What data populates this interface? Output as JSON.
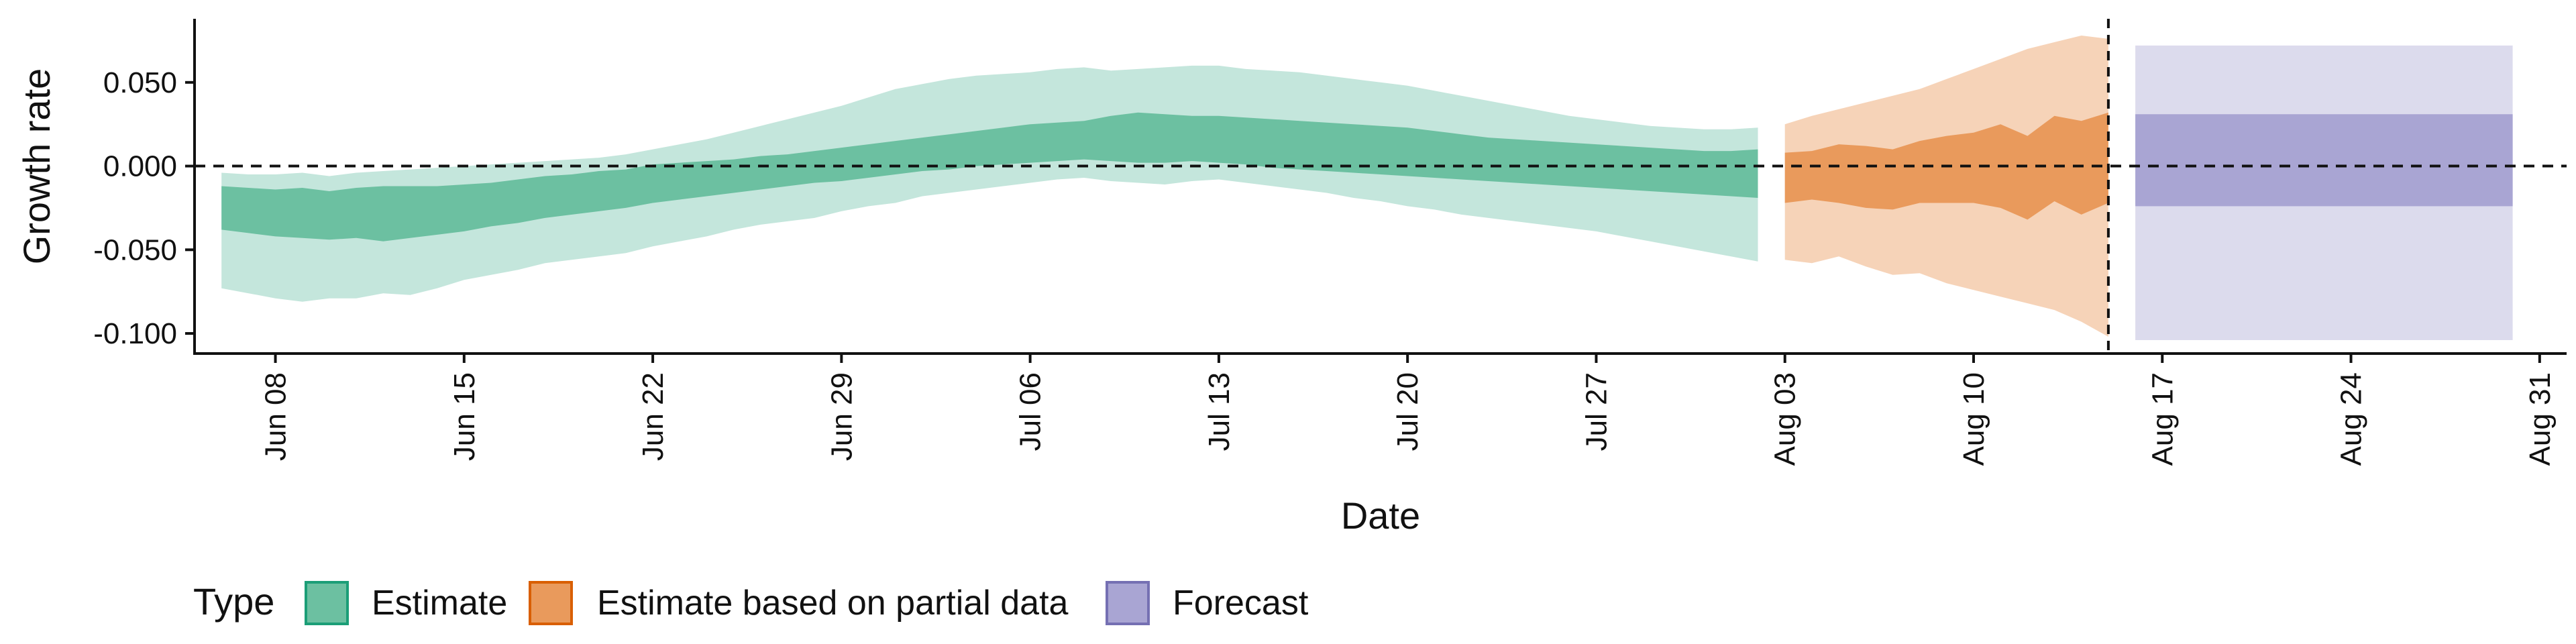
{
  "chart_data": {
    "type": "area",
    "xlabel": "Date",
    "ylabel": "Growth rate",
    "xlim": [
      "2020-06-05",
      "2020-09-01"
    ],
    "ylim": [
      -0.112,
      0.088
    ],
    "y_ticks": [
      {
        "value": 0.05,
        "label": "0.050"
      },
      {
        "value": 0.0,
        "label": "0.000"
      },
      {
        "value": -0.05,
        "label": "-0.050"
      },
      {
        "value": -0.1,
        "label": "-0.100"
      }
    ],
    "x_ticks": [
      {
        "date": "2020-06-08",
        "label": "Jun 08"
      },
      {
        "date": "2020-06-15",
        "label": "Jun 15"
      },
      {
        "date": "2020-06-22",
        "label": "Jun 22"
      },
      {
        "date": "2020-06-29",
        "label": "Jun 29"
      },
      {
        "date": "2020-07-06",
        "label": "Jul 06"
      },
      {
        "date": "2020-07-13",
        "label": "Jul 13"
      },
      {
        "date": "2020-07-20",
        "label": "Jul 20"
      },
      {
        "date": "2020-07-27",
        "label": "Jul 27"
      },
      {
        "date": "2020-08-03",
        "label": "Aug 03"
      },
      {
        "date": "2020-08-10",
        "label": "Aug 10"
      },
      {
        "date": "2020-08-17",
        "label": "Aug 17"
      },
      {
        "date": "2020-08-24",
        "label": "Aug 24"
      },
      {
        "date": "2020-08-31",
        "label": "Aug 31"
      }
    ],
    "hline": 0,
    "vline_date": "2020-08-15",
    "grid": false,
    "legend_position": "bottom-left",
    "legend_title": "Type",
    "legend": [
      {
        "label": "Estimate",
        "fill": "#6cc0a1",
        "stroke": "#1b9e77"
      },
      {
        "label": "Estimate based on partial data",
        "fill": "#e99a5c",
        "stroke": "#d95f02"
      },
      {
        "label": "Forecast",
        "fill": "#a9a5d3",
        "stroke": "#7570b3"
      }
    ],
    "series": [
      {
        "name": "Estimate",
        "inner_color": "#6cc0a1",
        "outer_color": "#c4e6dc",
        "x": [
          "2020-06-06",
          "2020-06-07",
          "2020-06-08",
          "2020-06-09",
          "2020-06-10",
          "2020-06-11",
          "2020-06-12",
          "2020-06-13",
          "2020-06-14",
          "2020-06-15",
          "2020-06-16",
          "2020-06-17",
          "2020-06-18",
          "2020-06-19",
          "2020-06-20",
          "2020-06-21",
          "2020-06-22",
          "2020-06-23",
          "2020-06-24",
          "2020-06-25",
          "2020-06-26",
          "2020-06-27",
          "2020-06-28",
          "2020-06-29",
          "2020-06-30",
          "2020-07-01",
          "2020-07-02",
          "2020-07-03",
          "2020-07-04",
          "2020-07-05",
          "2020-07-06",
          "2020-07-07",
          "2020-07-08",
          "2020-07-09",
          "2020-07-10",
          "2020-07-11",
          "2020-07-12",
          "2020-07-13",
          "2020-07-14",
          "2020-07-15",
          "2020-07-16",
          "2020-07-17",
          "2020-07-18",
          "2020-07-19",
          "2020-07-20",
          "2020-07-21",
          "2020-07-22",
          "2020-07-23",
          "2020-07-24",
          "2020-07-25",
          "2020-07-26",
          "2020-07-27",
          "2020-07-28",
          "2020-07-29",
          "2020-07-30",
          "2020-07-31",
          "2020-08-01",
          "2020-08-02"
        ],
        "outer_low": [
          -0.073,
          -0.076,
          -0.079,
          -0.081,
          -0.079,
          -0.079,
          -0.076,
          -0.077,
          -0.073,
          -0.068,
          -0.065,
          -0.062,
          -0.058,
          -0.056,
          -0.054,
          -0.052,
          -0.048,
          -0.045,
          -0.042,
          -0.038,
          -0.035,
          -0.033,
          -0.031,
          -0.027,
          -0.024,
          -0.022,
          -0.018,
          -0.016,
          -0.014,
          -0.012,
          -0.01,
          -0.008,
          -0.007,
          -0.009,
          -0.01,
          -0.011,
          -0.009,
          -0.008,
          -0.01,
          -0.012,
          -0.014,
          -0.016,
          -0.019,
          -0.021,
          -0.024,
          -0.026,
          -0.029,
          -0.031,
          -0.033,
          -0.035,
          -0.037,
          -0.039,
          -0.042,
          -0.045,
          -0.048,
          -0.051,
          -0.054,
          -0.057
        ],
        "inner_low": [
          -0.038,
          -0.04,
          -0.042,
          -0.043,
          -0.044,
          -0.043,
          -0.045,
          -0.043,
          -0.041,
          -0.039,
          -0.036,
          -0.034,
          -0.031,
          -0.029,
          -0.027,
          -0.025,
          -0.022,
          -0.02,
          -0.018,
          -0.016,
          -0.014,
          -0.012,
          -0.01,
          -0.009,
          -0.007,
          -0.005,
          -0.003,
          -0.002,
          0.0,
          0.001,
          0.002,
          0.003,
          0.004,
          0.003,
          0.002,
          0.002,
          0.003,
          0.002,
          0.001,
          -0.001,
          -0.002,
          -0.003,
          -0.004,
          -0.005,
          -0.006,
          -0.007,
          -0.008,
          -0.009,
          -0.01,
          -0.011,
          -0.012,
          -0.013,
          -0.014,
          -0.015,
          -0.016,
          -0.017,
          -0.018,
          -0.019
        ],
        "inner_high": [
          -0.012,
          -0.013,
          -0.014,
          -0.013,
          -0.015,
          -0.013,
          -0.012,
          -0.012,
          -0.012,
          -0.011,
          -0.01,
          -0.008,
          -0.006,
          -0.005,
          -0.003,
          -0.002,
          0.001,
          0.002,
          0.003,
          0.004,
          0.006,
          0.007,
          0.009,
          0.011,
          0.013,
          0.015,
          0.017,
          0.019,
          0.021,
          0.023,
          0.025,
          0.026,
          0.027,
          0.03,
          0.032,
          0.031,
          0.03,
          0.03,
          0.029,
          0.028,
          0.027,
          0.026,
          0.025,
          0.024,
          0.023,
          0.021,
          0.019,
          0.017,
          0.016,
          0.015,
          0.014,
          0.013,
          0.012,
          0.011,
          0.01,
          0.009,
          0.009,
          0.01
        ],
        "outer_high": [
          -0.004,
          -0.005,
          -0.005,
          -0.004,
          -0.006,
          -0.004,
          -0.003,
          -0.002,
          -0.001,
          0.0,
          0.001,
          0.002,
          0.003,
          0.004,
          0.005,
          0.007,
          0.01,
          0.013,
          0.016,
          0.02,
          0.024,
          0.028,
          0.032,
          0.036,
          0.041,
          0.046,
          0.049,
          0.052,
          0.054,
          0.055,
          0.056,
          0.058,
          0.059,
          0.057,
          0.058,
          0.059,
          0.06,
          0.06,
          0.058,
          0.057,
          0.056,
          0.054,
          0.052,
          0.05,
          0.048,
          0.045,
          0.042,
          0.039,
          0.036,
          0.033,
          0.03,
          0.028,
          0.026,
          0.024,
          0.023,
          0.022,
          0.022,
          0.023
        ]
      },
      {
        "name": "Estimate based on partial data",
        "inner_color": "#e99a5c",
        "outer_color": "#f6d3b8",
        "x": [
          "2020-08-03",
          "2020-08-04",
          "2020-08-05",
          "2020-08-06",
          "2020-08-07",
          "2020-08-08",
          "2020-08-09",
          "2020-08-10",
          "2020-08-11",
          "2020-08-12",
          "2020-08-13",
          "2020-08-14",
          "2020-08-15"
        ],
        "outer_low": [
          -0.056,
          -0.058,
          -0.054,
          -0.06,
          -0.065,
          -0.064,
          -0.07,
          -0.074,
          -0.078,
          -0.082,
          -0.086,
          -0.093,
          -0.102
        ],
        "inner_low": [
          -0.022,
          -0.02,
          -0.022,
          -0.025,
          -0.026,
          -0.022,
          -0.022,
          -0.022,
          -0.025,
          -0.032,
          -0.021,
          -0.029,
          -0.022
        ],
        "inner_high": [
          0.008,
          0.009,
          0.013,
          0.012,
          0.01,
          0.015,
          0.018,
          0.02,
          0.025,
          0.018,
          0.03,
          0.027,
          0.032
        ],
        "outer_high": [
          0.025,
          0.03,
          0.034,
          0.038,
          0.042,
          0.046,
          0.052,
          0.058,
          0.064,
          0.07,
          0.074,
          0.078,
          0.076
        ]
      },
      {
        "name": "Forecast",
        "inner_color": "#a9a5d3",
        "outer_color": "#dcdbed",
        "x": [
          "2020-08-16",
          "2020-08-30"
        ],
        "outer_low": [
          -0.104,
          -0.104
        ],
        "inner_low": [
          -0.024,
          -0.024
        ],
        "inner_high": [
          0.031,
          0.031
        ],
        "outer_high": [
          0.072,
          0.072
        ]
      }
    ]
  }
}
